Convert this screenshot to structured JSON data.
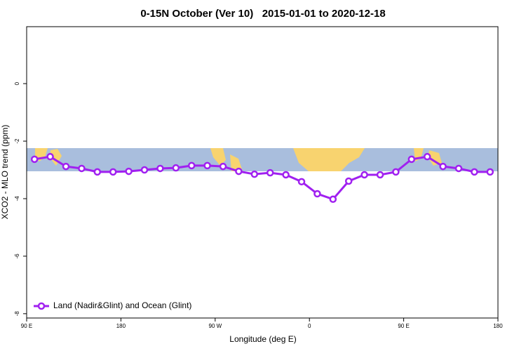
{
  "chart_data": {
    "type": "line",
    "title": "0-15N October (Ver 10)   2015-01-01 to 2020-12-18",
    "xlabel": "Longitude (deg E)",
    "ylabel": "XCO2 - MLO trend (ppm)",
    "xlim": [
      90,
      540
    ],
    "ylim": [
      -8.15,
      1.98
    ],
    "xticks": [
      {
        "value": 90,
        "label": "90 E"
      },
      {
        "value": 180,
        "label": "180"
      },
      {
        "value": 270,
        "label": "90 W"
      },
      {
        "value": 360,
        "label": "0"
      },
      {
        "value": 450,
        "label": "90 E"
      },
      {
        "value": 540,
        "label": "180"
      }
    ],
    "yticks": [
      0,
      -2,
      -4,
      -6,
      -8
    ],
    "legend": "bottom-left",
    "series": [
      {
        "name": "Land (Nadir&Glint) and Ocean (Glint)",
        "color": "#a020f0",
        "x": [
          97.5,
          112.5,
          127.5,
          142.5,
          157.5,
          172.5,
          187.5,
          202.5,
          217.5,
          232.5,
          247.5,
          262.5,
          277.5,
          292.5,
          307.5,
          322.5,
          337.5,
          352.5,
          367.5,
          382.5,
          397.5,
          412.5,
          427.5,
          442.5,
          457.5,
          472.5,
          487.5,
          502.5,
          517.5,
          532.5
        ],
        "values": [
          -2.63,
          -2.54,
          -2.88,
          -2.95,
          -3.07,
          -3.07,
          -3.05,
          -3.0,
          -2.95,
          -2.93,
          -2.85,
          -2.85,
          -2.88,
          -3.05,
          -3.15,
          -3.1,
          -3.17,
          -3.41,
          -3.83,
          -4.02,
          -3.39,
          -3.17,
          -3.17,
          -3.07,
          -2.63,
          -2.54,
          -2.88,
          -2.95,
          -3.07,
          -3.07
        ]
      }
    ]
  }
}
